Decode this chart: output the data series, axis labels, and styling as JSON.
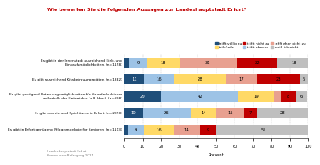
{
  "title": "Wie bewerten Sie die folgenden Aussagen zur Landeshauptstadt Erfurt?",
  "categories": [
    "Es gibt in der Innenstadt ausreichend Eink. und\nEinkaufsmöglichkeiten. (n=1158)",
    "Es gibt ausreichend Kitabetreuungsplätze. (n=1382)",
    "Es gibt genügend Betreuungsmöglichkeiten für Grundschulkinder\naußerhalb des Unterrichts (z.B. Hort). (n=808)",
    "Es gibt ausreichend Spielräume in Erfurt. (n=2090)",
    "Es gibt in Erfurt genügend Pflegeangebote für Senioren. (n=1113)"
  ],
  "legend_labels": [
    "trifft völlig zu",
    "trifft eher zu",
    "teils/teils",
    "trifft eher nicht zu",
    "trifft nicht zu",
    "weiß ich nicht"
  ],
  "colors": [
    "#1f4e79",
    "#9dc3e6",
    "#ffd966",
    "#e8a090",
    "#c00000",
    "#bfbfbf"
  ],
  "data": [
    [
      3,
      9,
      18,
      31,
      22,
      18
    ],
    [
      11,
      16,
      28,
      17,
      23,
      5
    ],
    [
      20,
      42,
      19,
      4,
      8,
      6
    ],
    [
      10,
      26,
      14,
      15,
      7,
      28
    ],
    [
      2,
      9,
      16,
      14,
      9,
      51
    ]
  ],
  "xlabel": "Prozent",
  "footer": "Landeshauptstadt Erfurt\nKommunale Befragung 2021",
  "xlim": [
    0,
    100
  ],
  "xticks": [
    0,
    10,
    20,
    30,
    40,
    50,
    60,
    70,
    80,
    90,
    100
  ]
}
